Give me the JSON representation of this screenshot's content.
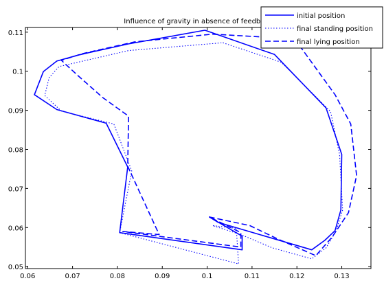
{
  "chart_data": {
    "type": "line",
    "title": "Influence of gravity in absence of feedback",
    "xlim": [
      0.0595,
      0.1365
    ],
    "ylim": [
      0.0495,
      0.1112
    ],
    "x_ticks": [
      0.06,
      0.07,
      0.08,
      0.09,
      0.1,
      0.11,
      0.12,
      0.13
    ],
    "x_tick_labels": [
      "0.06",
      "0.07",
      "0.08",
      "0.09",
      "0.1",
      "0.11",
      "0.12",
      "0.13"
    ],
    "y_ticks": [
      0.05,
      0.06,
      0.07,
      0.08,
      0.09,
      0.1,
      0.11
    ],
    "y_tick_labels": [
      "0.05",
      "0.06",
      "0.07",
      "0.08",
      "0.09",
      "0.1",
      "0.11"
    ],
    "grid": false,
    "legend_position": "top-right",
    "color": "#0000ff",
    "series": [
      {
        "name": "initial position",
        "style": "solid",
        "points": [
          [
            0.0995,
            0.1105
          ],
          [
            0.115,
            0.1043
          ],
          [
            0.1265,
            0.0906
          ],
          [
            0.13,
            0.0787
          ],
          [
            0.1298,
            0.0645
          ],
          [
            0.1285,
            0.0592
          ],
          [
            0.1262,
            0.0567
          ],
          [
            0.1233,
            0.0543
          ],
          [
            0.1025,
            0.0613
          ],
          [
            0.1005,
            0.0627
          ],
          [
            0.1078,
            0.0578
          ],
          [
            0.1078,
            0.0543
          ],
          [
            0.0805,
            0.0587
          ],
          [
            0.0823,
            0.0755
          ],
          [
            0.0775,
            0.0867
          ],
          [
            0.0665,
            0.0902
          ],
          [
            0.0615,
            0.094
          ],
          [
            0.0635,
            0.0999
          ],
          [
            0.0665,
            0.1026
          ],
          [
            0.0715,
            0.1042
          ],
          [
            0.0825,
            0.107
          ],
          [
            0.0995,
            0.1105
          ]
        ]
      },
      {
        "name": "final standing position",
        "style": "dotted",
        "points": [
          [
            0.1035,
            0.1073
          ],
          [
            0.1165,
            0.1023
          ],
          [
            0.1275,
            0.0897
          ],
          [
            0.1295,
            0.0787
          ],
          [
            0.1302,
            0.0645
          ],
          [
            0.1287,
            0.059
          ],
          [
            0.1265,
            0.0548
          ],
          [
            0.1233,
            0.052
          ],
          [
            0.1145,
            0.0548
          ],
          [
            0.1075,
            0.0582
          ],
          [
            0.1012,
            0.0605
          ],
          [
            0.1065,
            0.0598
          ],
          [
            0.107,
            0.0507
          ],
          [
            0.0805,
            0.0587
          ],
          [
            0.0832,
            0.0745
          ],
          [
            0.0792,
            0.0865
          ],
          [
            0.0675,
            0.0898
          ],
          [
            0.0638,
            0.0938
          ],
          [
            0.0648,
            0.0984
          ],
          [
            0.067,
            0.1012
          ],
          [
            0.0825,
            0.1053
          ],
          [
            0.1035,
            0.1073
          ]
        ]
      },
      {
        "name": "final lying position",
        "style": "dashed",
        "points": [
          [
            0.1012,
            0.1095
          ],
          [
            0.1195,
            0.1083
          ],
          [
            0.1285,
            0.094
          ],
          [
            0.132,
            0.0865
          ],
          [
            0.1333,
            0.0733
          ],
          [
            0.1315,
            0.0638
          ],
          [
            0.1278,
            0.0575
          ],
          [
            0.1242,
            0.0528
          ],
          [
            0.1155,
            0.0572
          ],
          [
            0.1095,
            0.0605
          ],
          [
            0.1005,
            0.0627
          ],
          [
            0.1075,
            0.0587
          ],
          [
            0.1075,
            0.055
          ],
          [
            0.0812,
            0.059
          ],
          [
            0.0893,
            0.0582
          ],
          [
            0.0823,
            0.0757
          ],
          [
            0.0825,
            0.0885
          ],
          [
            0.0768,
            0.0932
          ],
          [
            0.0712,
            0.0989
          ],
          [
            0.0675,
            0.1028
          ],
          [
            0.0722,
            0.1045
          ],
          [
            0.0838,
            0.1075
          ],
          [
            0.1012,
            0.1095
          ]
        ]
      }
    ]
  }
}
